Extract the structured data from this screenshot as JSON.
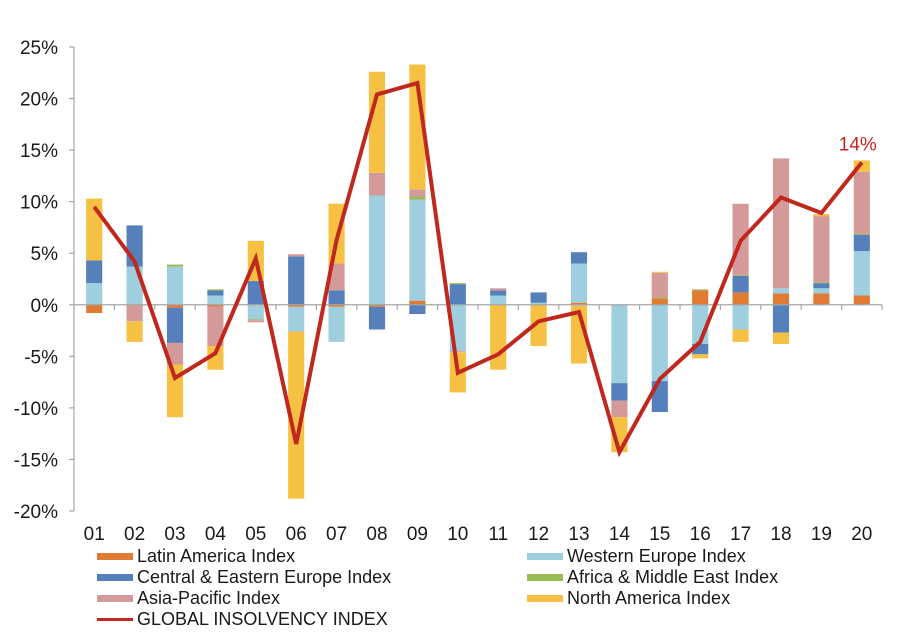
{
  "chart_data": {
    "type": "bar",
    "subtype": "stacked-bar-with-line",
    "title": "",
    "xlabel": "",
    "ylabel": "",
    "ylim": [
      -20,
      25
    ],
    "yticks": [
      -20,
      -15,
      -10,
      -5,
      0,
      5,
      10,
      15,
      20,
      25
    ],
    "ytick_labels": [
      "-20%",
      "-15%",
      "-10%",
      "-5%",
      "0%",
      "5%",
      "10%",
      "15%",
      "20%",
      "25%"
    ],
    "categories": [
      "01",
      "02",
      "03",
      "04",
      "05",
      "06",
      "07",
      "08",
      "09",
      "10",
      "11",
      "12",
      "13",
      "14",
      "15",
      "16",
      "17",
      "18",
      "19",
      "20"
    ],
    "grid": false,
    "legend_position": "bottom",
    "series": [
      {
        "name": "Latin America Index",
        "color": "#e07b34",
        "kind": "bar",
        "values": [
          -0.8,
          -0.1,
          -0.3,
          -0.2,
          0.0,
          -0.2,
          -0.2,
          -0.2,
          0.4,
          0.0,
          0.0,
          0.0,
          0.2,
          0.0,
          0.6,
          1.4,
          1.2,
          1.1,
          1.1,
          0.9
        ]
      },
      {
        "name": "Western Europe Index",
        "color": "#9fcfde",
        "kind": "bar",
        "values": [
          2.1,
          3.7,
          3.7,
          0.9,
          -1.4,
          -2.4,
          -3.4,
          10.6,
          9.8,
          -4.5,
          0.9,
          0.2,
          3.8,
          -7.6,
          -7.4,
          -3.8,
          -2.4,
          0.5,
          0.5,
          4.3
        ]
      },
      {
        "name": "Central & Eastern Europe Index",
        "color": "#5580bc",
        "kind": "bar",
        "values": [
          2.2,
          4.0,
          -3.4,
          0.5,
          2.3,
          4.7,
          1.4,
          -2.2,
          -0.9,
          2.0,
          0.5,
          1.0,
          1.1,
          -1.7,
          -3.0,
          -1.0,
          1.6,
          -2.7,
          0.5,
          1.6
        ]
      },
      {
        "name": "Africa & Middle East Index",
        "color": "#9bbb59",
        "kind": "bar",
        "values": [
          0.0,
          0.0,
          0.2,
          0.1,
          -0.1,
          0.0,
          0.0,
          0.0,
          0.3,
          0.1,
          0.0,
          0.0,
          0.0,
          0.0,
          0.1,
          0.1,
          0.1,
          0.0,
          0.1,
          0.1
        ]
      },
      {
        "name": "Asia-Pacific Index",
        "color": "#d49a99",
        "kind": "bar",
        "values": [
          0.0,
          -1.5,
          -2.1,
          -3.8,
          -0.2,
          0.2,
          2.6,
          2.2,
          0.7,
          -0.1,
          0.2,
          0.0,
          -0.1,
          -1.6,
          2.4,
          0.0,
          6.9,
          12.6,
          6.4,
          6.0
        ]
      },
      {
        "name": "North America Index",
        "color": "#f6c142",
        "kind": "bar",
        "values": [
          6.0,
          -2.0,
          -5.1,
          -2.3,
          3.9,
          -16.2,
          5.8,
          9.8,
          12.1,
          -3.9,
          -6.3,
          -4.0,
          -5.6,
          -3.4,
          0.1,
          -0.4,
          -1.2,
          -1.1,
          0.2,
          1.1
        ]
      },
      {
        "name": "GLOBAL INSOLVENCY INDEX",
        "color": "#c0281e",
        "kind": "line",
        "values": [
          9.5,
          4.2,
          -7.1,
          -4.7,
          4.5,
          -13.5,
          6.3,
          20.4,
          21.5,
          -6.6,
          -4.8,
          -1.6,
          -0.7,
          -14.3,
          -7.2,
          -3.6,
          6.2,
          10.4,
          8.9,
          13.8
        ]
      }
    ],
    "annotations": [
      {
        "text": "14%",
        "category": "20",
        "series": "GLOBAL INSOLVENCY INDEX",
        "color": "#c0281e"
      }
    ]
  },
  "legend": {
    "items": [
      {
        "label": "Latin America Index",
        "color": "#e07b34",
        "kind": "bar"
      },
      {
        "label": "Western Europe Index",
        "color": "#9fcfde",
        "kind": "bar"
      },
      {
        "label": "Central & Eastern Europe Index",
        "color": "#5580bc",
        "kind": "bar"
      },
      {
        "label": "Africa & Middle East Index",
        "color": "#9bbb59",
        "kind": "bar"
      },
      {
        "label": "Asia-Pacific Index",
        "color": "#d49a99",
        "kind": "bar"
      },
      {
        "label": "North America Index",
        "color": "#f6c142",
        "kind": "bar"
      },
      {
        "label": "GLOBAL INSOLVENCY INDEX",
        "color": "#c0281e",
        "kind": "line"
      }
    ]
  }
}
